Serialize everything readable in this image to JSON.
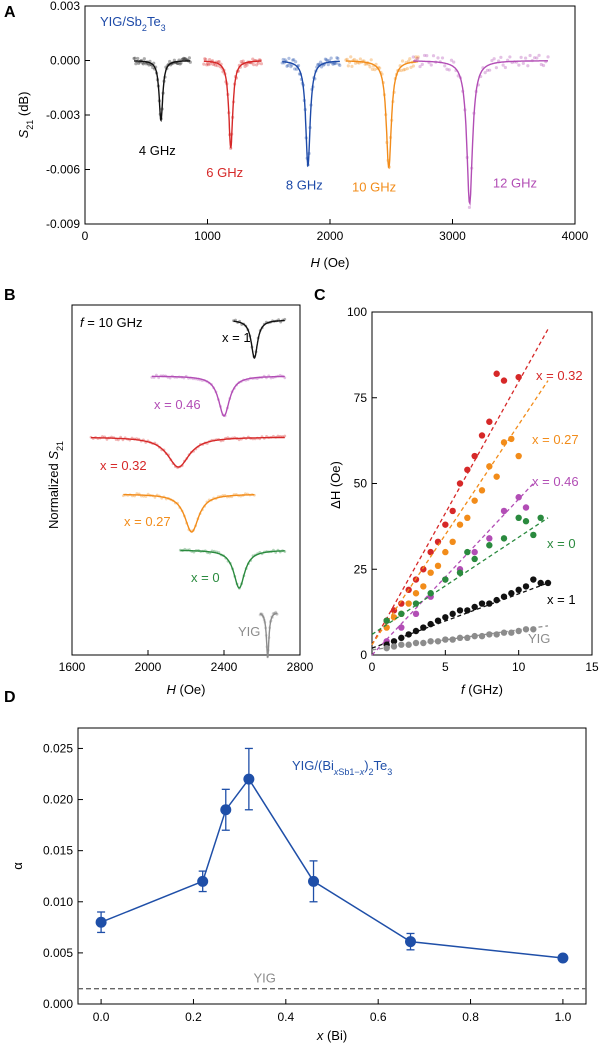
{
  "chart_data": [
    {
      "panel": "A",
      "type": "scatter",
      "annotation": "YIG/Sb2Te3",
      "xlabel": "H (Oe)",
      "ylabel": "S21 (dB)",
      "xlim": [
        0,
        4000
      ],
      "ylim": [
        -0.009,
        0.003
      ],
      "xticks": [
        "0",
        "1000",
        "2000",
        "3000",
        "4000"
      ],
      "yticks": [
        "0.003",
        "0.000",
        "-0.003",
        "-0.006",
        "-0.009"
      ],
      "series": [
        {
          "name": "4 GHz",
          "color": "#111111",
          "center": 620,
          "depth": -0.0033,
          "width": 18,
          "x_range": [
            400,
            860
          ],
          "label_x": 440,
          "label_y": -0.0052
        },
        {
          "name": "6 GHz",
          "color": "#d62828",
          "center": 1190,
          "depth": -0.0048,
          "width": 20,
          "x_range": [
            970,
            1440
          ],
          "label_x": 990,
          "label_y": -0.0064
        },
        {
          "name": "8 GHz",
          "color": "#1d4aa8",
          "center": 1820,
          "depth": -0.0058,
          "width": 22,
          "x_range": [
            1610,
            2080
          ],
          "label_x": 1640,
          "label_y": -0.0071
        },
        {
          "name": "10 GHz",
          "color": "#f28c1a",
          "center": 2480,
          "depth": -0.0059,
          "width": 25,
          "x_range": [
            2130,
            2720
          ],
          "label_x": 2180,
          "label_y": -0.0072
        },
        {
          "name": "12 GHz",
          "color": "#b24db5",
          "center": 3140,
          "depth": -0.0079,
          "width": 28,
          "x_range": [
            2680,
            3780
          ],
          "label_x": 3330,
          "label_y": -0.007
        }
      ]
    },
    {
      "panel": "B",
      "type": "line",
      "annotation": "f = 10 GHz",
      "xlabel": "H (Oe)",
      "ylabel": "Normalized S21",
      "xlim": [
        1600,
        2800
      ],
      "xticks": [
        "1600",
        "2000",
        "2400",
        "2800"
      ],
      "series": [
        {
          "name": "x = 1",
          "color": "#111111",
          "center": 2560,
          "width": 20,
          "x_range": [
            2450,
            2720
          ]
        },
        {
          "name": "x = 0.46",
          "color": "#b24db5",
          "center": 2400,
          "width": 35,
          "x_range": [
            2020,
            2720
          ]
        },
        {
          "name": "x = 0.32",
          "color": "#d62828",
          "center": 2160,
          "width": 70,
          "x_range": [
            1700,
            2720
          ]
        },
        {
          "name": "x = 0.27",
          "color": "#f28c1a",
          "center": 2230,
          "width": 45,
          "x_range": [
            1870,
            2560
          ]
        },
        {
          "name": "x = 0",
          "color": "#2a8a3e",
          "center": 2480,
          "width": 35,
          "x_range": [
            2170,
            2720
          ]
        },
        {
          "name": "YIG",
          "color": "#8c8c8c",
          "center": 2630,
          "width": 8,
          "x_range": [
            2590,
            2680
          ]
        }
      ]
    },
    {
      "panel": "C",
      "type": "scatter",
      "xlabel": "f (GHz)",
      "ylabel": "ΔH (Oe)",
      "xlim": [
        0,
        15
      ],
      "ylim": [
        0,
        100
      ],
      "xticks": [
        "0",
        "5",
        "10",
        "15"
      ],
      "yticks": [
        "0",
        "25",
        "50",
        "75",
        "100"
      ],
      "series": [
        {
          "name": "x = 0.32",
          "color": "#d62828",
          "x": [
            1.0,
            1.5,
            2.0,
            2.5,
            3.0,
            3.5,
            4.0,
            4.5,
            5.0,
            5.5,
            6.0,
            6.5,
            7.0,
            7.5,
            8.0,
            8.5,
            9.0,
            10.0
          ],
          "y": [
            10,
            13,
            15,
            19,
            22,
            25,
            30,
            33,
            38,
            42,
            50,
            54,
            58,
            64,
            68,
            82,
            80,
            81
          ],
          "fit": [
            [
              0,
              3
            ],
            [
              12,
              95
            ]
          ]
        },
        {
          "name": "x = 0.27",
          "color": "#f28c1a",
          "x": [
            1.0,
            1.5,
            2.0,
            2.5,
            3.0,
            3.5,
            4.0,
            4.5,
            5.0,
            5.5,
            6.0,
            6.5,
            7.0,
            7.5,
            8.0,
            8.5,
            9.0,
            9.5,
            10.0
          ],
          "y": [
            8,
            11,
            12,
            15,
            18,
            20,
            24,
            26,
            30,
            33,
            38,
            40,
            45,
            48,
            55,
            52,
            62,
            63,
            58
          ],
          "fit": [
            [
              0,
              3
            ],
            [
              12,
              80
            ]
          ]
        },
        {
          "name": "x = 0.46",
          "color": "#b24db5",
          "x": [
            1.0,
            2.0,
            3.0,
            4.0,
            5.0,
            6.0,
            7.0,
            8.0,
            9.0,
            10.0,
            10.5
          ],
          "y": [
            4,
            8,
            12,
            17,
            22,
            25,
            30,
            34,
            42,
            46,
            43
          ],
          "fit": [
            [
              0,
              0
            ],
            [
              11,
              50
            ]
          ]
        },
        {
          "name": "x = 0",
          "color": "#2a8a3e",
          "x": [
            1.0,
            2.0,
            3.0,
            4.0,
            5.0,
            6.0,
            6.5,
            7.0,
            8.0,
            9.0,
            10.0,
            10.5,
            11.0,
            11.5
          ],
          "y": [
            10,
            12,
            15,
            18,
            22,
            24,
            30,
            28,
            32,
            34,
            40,
            39,
            35,
            40
          ],
          "fit": [
            [
              0,
              6
            ],
            [
              12,
              40
            ]
          ]
        },
        {
          "name": "x = 1",
          "color": "#111111",
          "x": [
            1.0,
            1.5,
            2.0,
            2.5,
            3.0,
            3.5,
            4.0,
            4.5,
            5.0,
            5.5,
            6.0,
            6.5,
            7.0,
            7.5,
            8.0,
            8.5,
            9.0,
            9.5,
            10.0,
            10.5,
            11.0,
            11.5,
            12.0
          ],
          "y": [
            3,
            4,
            5,
            6,
            7,
            8,
            9,
            10,
            11,
            12,
            13,
            13,
            14,
            15,
            15,
            16,
            17,
            18,
            19,
            20,
            22,
            21,
            21
          ],
          "fit": [
            [
              0,
              2
            ],
            [
              12,
              21
            ]
          ]
        },
        {
          "name": "YIG",
          "color": "#8c8c8c",
          "x": [
            1.0,
            1.5,
            2.0,
            2.5,
            3.0,
            3.5,
            4.0,
            4.5,
            5.0,
            5.5,
            6.0,
            6.5,
            7.0,
            7.5,
            8.0,
            8.5,
            9.0,
            9.5,
            10.0,
            10.5,
            11.0
          ],
          "y": [
            2,
            2.5,
            3,
            3,
            3.5,
            3.5,
            4,
            4,
            4.5,
            4.5,
            5,
            5,
            5.5,
            5.5,
            6,
            6,
            6.5,
            6.5,
            7,
            7.5,
            7.5
          ],
          "fit": [
            [
              0,
              1.5
            ],
            [
              12,
              8.5
            ]
          ]
        }
      ]
    },
    {
      "panel": "D",
      "type": "line",
      "annotation": "YIG/(BixSb1−x)2Te3",
      "xlabel": "x (Bi)",
      "ylabel": "α",
      "xlim": [
        -0.05,
        1.05
      ],
      "ylim": [
        0.0,
        0.027
      ],
      "xticks": [
        "0.0",
        "0.2",
        "0.4",
        "0.6",
        "0.8",
        "1.0"
      ],
      "yticks": [
        "0.000",
        "0.005",
        "0.010",
        "0.015",
        "0.020",
        "0.025"
      ],
      "x": [
        0.0,
        0.22,
        0.27,
        0.32,
        0.46,
        0.67,
        1.0
      ],
      "y": [
        0.008,
        0.012,
        0.019,
        0.022,
        0.012,
        0.0061,
        0.0045
      ],
      "yerr": [
        0.001,
        0.001,
        0.002,
        0.003,
        0.002,
        0.0008,
        0.0003
      ],
      "color": "#1f4fa8",
      "reference": {
        "name": "YIG",
        "value": 0.0015,
        "color": "#666666"
      }
    }
  ],
  "panel_labels": [
    "A",
    "B",
    "C",
    "D"
  ]
}
